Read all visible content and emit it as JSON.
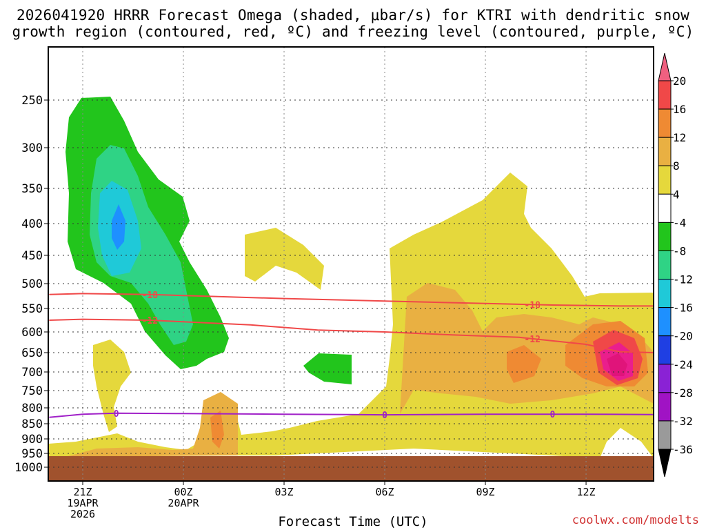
{
  "title": {
    "line1": "2026041920 HRRR Forecast Omega (shaded, μbar/s) for KTRI with dendritic snow",
    "line2": "growth region (contoured, red, ºC) and freezing level (contoured, purple, ºC)"
  },
  "credit": "coolwx.com/modelts",
  "chart_data": {
    "type": "heatmap",
    "xlabel": "Forecast Time (UTC)",
    "ylabel": "",
    "x_ticks": [
      {
        "hours": 0,
        "lines": [
          "21Z",
          "19APR",
          "2026"
        ]
      },
      {
        "hours": 3,
        "lines": [
          "00Z",
          "20APR"
        ]
      },
      {
        "hours": 6,
        "lines": [
          "03Z"
        ]
      },
      {
        "hours": 9,
        "lines": [
          "06Z"
        ]
      },
      {
        "hours": 12,
        "lines": [
          "09Z"
        ]
      },
      {
        "hours": 15,
        "lines": [
          "12Z"
        ]
      }
    ],
    "y_ticks": [
      250,
      300,
      350,
      400,
      450,
      500,
      550,
      600,
      650,
      700,
      750,
      800,
      850,
      900,
      950,
      1000
    ],
    "colorbar": {
      "labels": [
        20,
        16,
        12,
        8,
        4,
        -4,
        -8,
        -12,
        -16,
        -20,
        -24,
        -28,
        -32,
        -36
      ],
      "colors": [
        "#f06080",
        "#f04848",
        "#ef8a33",
        "#e9b042",
        "#e5d83c",
        "#ffffff",
        "#22c51c",
        "#2fd385",
        "#1fc9d8",
        "#1e90ff",
        "#1f3fe3",
        "#8a22d5",
        "#a013c4",
        "#9a9a9a",
        "#000000"
      ]
    },
    "contours": [
      {
        "label": "-18",
        "color": "#f04848",
        "points": [
          [
            -1,
            522
          ],
          [
            0,
            520
          ],
          [
            2,
            522
          ],
          [
            6,
            530
          ],
          [
            9,
            535
          ],
          [
            12,
            540
          ],
          [
            14,
            543
          ],
          [
            16,
            545
          ],
          [
            17,
            545
          ]
        ]
      },
      {
        "label": "-12",
        "color": "#f04848",
        "points": [
          [
            -1,
            575
          ],
          [
            0,
            573
          ],
          [
            2,
            575
          ],
          [
            5,
            585
          ],
          [
            7,
            596
          ],
          [
            9,
            600
          ],
          [
            11,
            607
          ],
          [
            13,
            613
          ],
          [
            15,
            630
          ],
          [
            16,
            648
          ],
          [
            17,
            650
          ]
        ]
      },
      {
        "label": "0",
        "color": "#a020c8",
        "points": [
          [
            -1,
            830
          ],
          [
            0,
            820
          ],
          [
            1,
            817
          ],
          [
            3,
            818
          ],
          [
            6,
            820
          ],
          [
            9,
            822
          ],
          [
            12,
            820
          ],
          [
            15,
            820
          ],
          [
            17,
            821
          ]
        ]
      }
    ],
    "ground_pressure": 960,
    "ground_color": "#a0522d"
  }
}
